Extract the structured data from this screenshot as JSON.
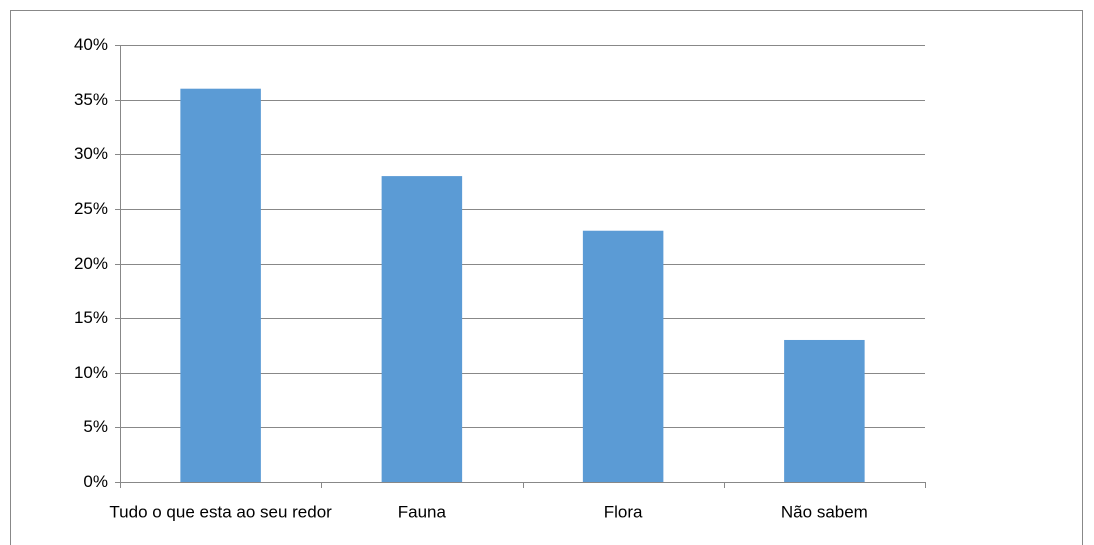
{
  "chart_data": {
    "type": "bar",
    "categories": [
      "Tudo o que esta ao seu redor",
      "Fauna",
      "Flora",
      "Não sabem"
    ],
    "values": [
      36,
      28,
      23,
      13
    ],
    "color": "#5b9bd5",
    "ylim": [
      0,
      40
    ],
    "yticks": [
      {
        "value": 0,
        "label": "0%"
      },
      {
        "value": 5,
        "label": "5%"
      },
      {
        "value": 10,
        "label": "10%"
      },
      {
        "value": 15,
        "label": "15%"
      },
      {
        "value": 20,
        "label": "20%"
      },
      {
        "value": 25,
        "label": "25%"
      },
      {
        "value": 30,
        "label": "30%"
      },
      {
        "value": 35,
        "label": "35%"
      },
      {
        "value": 40,
        "label": "40%"
      }
    ],
    "grid": true
  }
}
